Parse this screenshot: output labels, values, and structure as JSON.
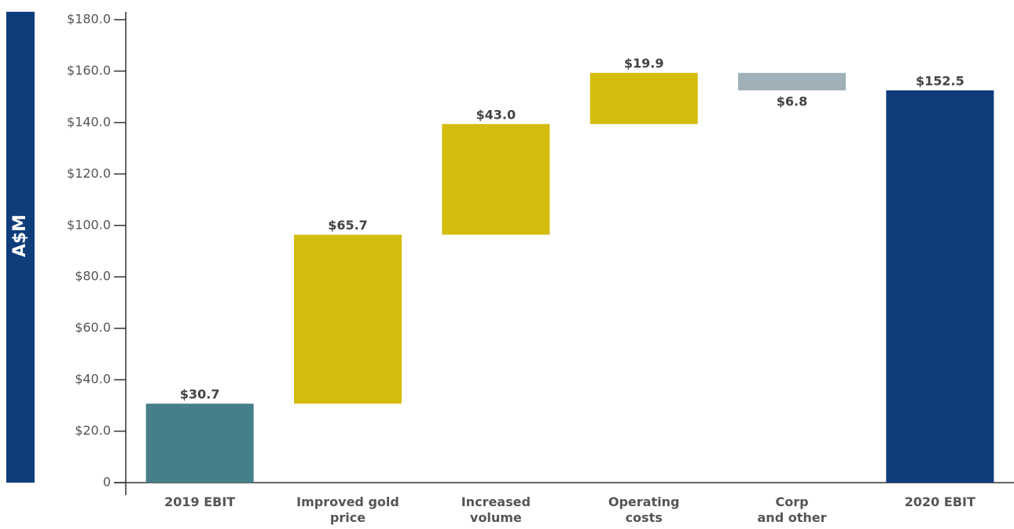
{
  "chart_data": {
    "type": "waterfall",
    "y_axis_label": "A$M",
    "categories": [
      "2019 EBIT",
      "Improved gold\nprice",
      "Increased\nvolume",
      "Operating\ncosts",
      "Corp\nand other",
      "2020 EBIT"
    ],
    "values": [
      30.7,
      65.7,
      43.0,
      19.9,
      -6.8,
      152.5
    ],
    "value_labels": [
      "$30.7",
      "$65.7",
      "$43.0",
      "$19.9",
      "$6.8",
      "$152.5"
    ],
    "colors": [
      "#467f87",
      "#d4bc0c",
      "#d4bc0c",
      "#d4bc0c",
      "#9fb0b8",
      "#0e3d7a"
    ],
    "ylim": [
      0,
      180
    ],
    "yticks": [
      0,
      {
        "value": 20,
        "label": "$20.0"
      },
      {
        "value": 40,
        "label": "$40.0"
      },
      {
        "value": 60,
        "label": "$60.0"
      },
      {
        "value": 80,
        "label": "$80.0"
      },
      {
        "value": 100,
        "label": "$100.0"
      },
      {
        "value": 120,
        "label": "$120.0"
      },
      {
        "value": 140,
        "label": "$140.0"
      },
      {
        "value": 160,
        "label": "$160.0"
      },
      {
        "value": 180,
        "label": "$180.0"
      }
    ]
  }
}
